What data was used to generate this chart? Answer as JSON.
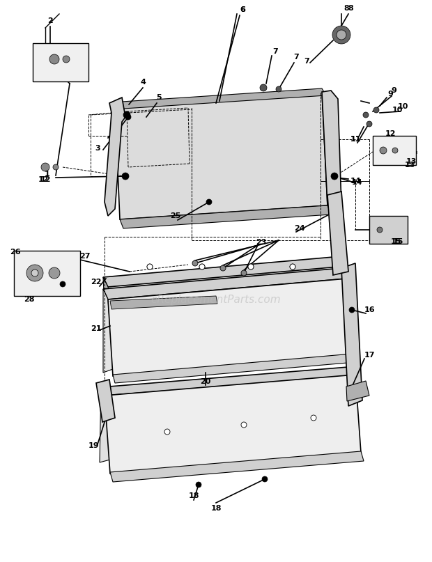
{
  "bg_color": "#ffffff",
  "watermark": "eReplacementParts.com",
  "watermark_color": "#bbbbbb",
  "watermark_fontsize": 11,
  "fig_width": 6.2,
  "fig_height": 8.07,
  "dpi": 100
}
